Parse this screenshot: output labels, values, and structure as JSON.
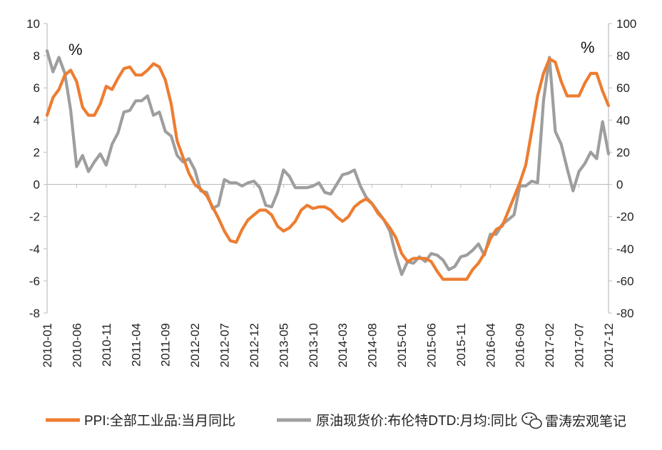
{
  "chart_data": {
    "type": "line",
    "title": "",
    "x": [
      "2010-01",
      "2010-02",
      "2010-03",
      "2010-04",
      "2010-05",
      "2010-06",
      "2010-07",
      "2010-08",
      "2010-09",
      "2010-10",
      "2010-11",
      "2010-12",
      "2011-01",
      "2011-02",
      "2011-03",
      "2011-04",
      "2011-05",
      "2011-06",
      "2011-07",
      "2011-08",
      "2011-09",
      "2011-10",
      "2011-11",
      "2011-12",
      "2012-01",
      "2012-02",
      "2012-03",
      "2012-04",
      "2012-05",
      "2012-06",
      "2012-07",
      "2012-08",
      "2012-09",
      "2012-10",
      "2012-11",
      "2012-12",
      "2013-01",
      "2013-02",
      "2013-03",
      "2013-04",
      "2013-05",
      "2013-06",
      "2013-07",
      "2013-08",
      "2013-09",
      "2013-10",
      "2013-11",
      "2013-12",
      "2014-01",
      "2014-02",
      "2014-03",
      "2014-04",
      "2014-05",
      "2014-06",
      "2014-07",
      "2014-08",
      "2014-09",
      "2014-10",
      "2014-11",
      "2014-12",
      "2015-01",
      "2015-02",
      "2015-03",
      "2015-04",
      "2015-05",
      "2015-06",
      "2015-07",
      "2015-08",
      "2015-09",
      "2015-10",
      "2015-11",
      "2015-12",
      "2016-01",
      "2016-02",
      "2016-03",
      "2016-04",
      "2016-05",
      "2016-06",
      "2016-07",
      "2016-08",
      "2016-09",
      "2016-10",
      "2016-11",
      "2016-12",
      "2017-01",
      "2017-02",
      "2017-03",
      "2017-04",
      "2017-05",
      "2017-06",
      "2017-07",
      "2017-08",
      "2017-09",
      "2017-10",
      "2017-11",
      "2017-12"
    ],
    "x_tick_labels": [
      "2010-01",
      "2010-06",
      "2010-11",
      "2011-04",
      "2011-09",
      "2012-02",
      "2012-07",
      "2012-12",
      "2013-05",
      "2013-10",
      "2014-03",
      "2014-08",
      "2015-01",
      "2015-06",
      "2015-11",
      "2016-04",
      "2016-09",
      "2017-02",
      "2017-07",
      "2017-12"
    ],
    "y_left": {
      "label": "%",
      "range": [
        -8,
        10
      ],
      "ticks": [
        "10",
        "8",
        "6",
        "4",
        "2",
        "0",
        "-2",
        "-4",
        "-6",
        "-8"
      ]
    },
    "y_right": {
      "label": "%",
      "range": [
        -80,
        100
      ],
      "ticks": [
        "100",
        "80",
        "60",
        "40",
        "20",
        "0",
        "-20",
        "-40",
        "-60",
        "-80"
      ]
    },
    "series": [
      {
        "name": "PPI:全部工业品:当月同比",
        "axis": "left",
        "color": "#ED7D31",
        "values": [
          4.3,
          5.4,
          5.9,
          6.8,
          7.1,
          6.4,
          4.8,
          4.3,
          4.3,
          5.0,
          6.1,
          5.9,
          6.6,
          7.2,
          7.3,
          6.8,
          6.8,
          7.1,
          7.5,
          7.3,
          6.5,
          5.0,
          2.7,
          1.7,
          0.7,
          0.0,
          -0.3,
          -0.7,
          -1.4,
          -2.1,
          -2.9,
          -3.5,
          -3.6,
          -2.8,
          -2.2,
          -1.9,
          -1.6,
          -1.6,
          -1.9,
          -2.6,
          -2.9,
          -2.7,
          -2.3,
          -1.6,
          -1.3,
          -1.5,
          -1.4,
          -1.4,
          -1.6,
          -2.0,
          -2.3,
          -2.0,
          -1.4,
          -1.1,
          -0.9,
          -1.2,
          -1.8,
          -2.2,
          -2.7,
          -3.3,
          -4.3,
          -4.8,
          -4.6,
          -4.6,
          -4.6,
          -4.8,
          -5.4,
          -5.9,
          -5.9,
          -5.9,
          -5.9,
          -5.9,
          -5.3,
          -4.9,
          -4.3,
          -3.4,
          -2.8,
          -2.6,
          -1.7,
          -0.8,
          0.1,
          1.2,
          3.3,
          5.5,
          6.9,
          7.8,
          7.6,
          6.4,
          5.5,
          5.5,
          5.5,
          6.3,
          6.9,
          6.9,
          5.8,
          4.9
        ]
      },
      {
        "name": "原油现货价:布伦特DTD:月均:同比",
        "axis": "right",
        "color": "#9E9E9E",
        "values": [
          83,
          70,
          79,
          69,
          46,
          11,
          18,
          8,
          14,
          19,
          12,
          25,
          32,
          45,
          46,
          52,
          52,
          55,
          43,
          45,
          33,
          30,
          18,
          14,
          16,
          9,
          -4,
          -5,
          -15,
          -13,
          3,
          1,
          1,
          -1,
          1,
          2,
          -2,
          -13,
          -14,
          -5,
          9,
          5,
          -2,
          -2,
          -2,
          -1,
          1,
          -5,
          -6,
          0,
          6,
          7,
          9,
          -1,
          -8,
          -12,
          -17,
          -22,
          -29,
          -44,
          -56,
          -48,
          -49,
          -45,
          -48,
          -43,
          -44,
          -47,
          -53,
          -51,
          -45,
          -44,
          -41,
          -37,
          -44,
          -31,
          -31,
          -25,
          -22,
          -19,
          -1,
          -1,
          2,
          1,
          52,
          79,
          33,
          25,
          10,
          -4,
          8,
          13,
          20,
          16,
          39,
          19
        ]
      }
    ]
  },
  "legend": {
    "ppi_label": "PPI:全部工业品:当月同比",
    "oil_label": "原油现货价:布伦特DTD:月均:同比"
  },
  "watermark": {
    "text": "雷涛宏观笔记",
    "icon": "wechat-bubble-icon"
  }
}
